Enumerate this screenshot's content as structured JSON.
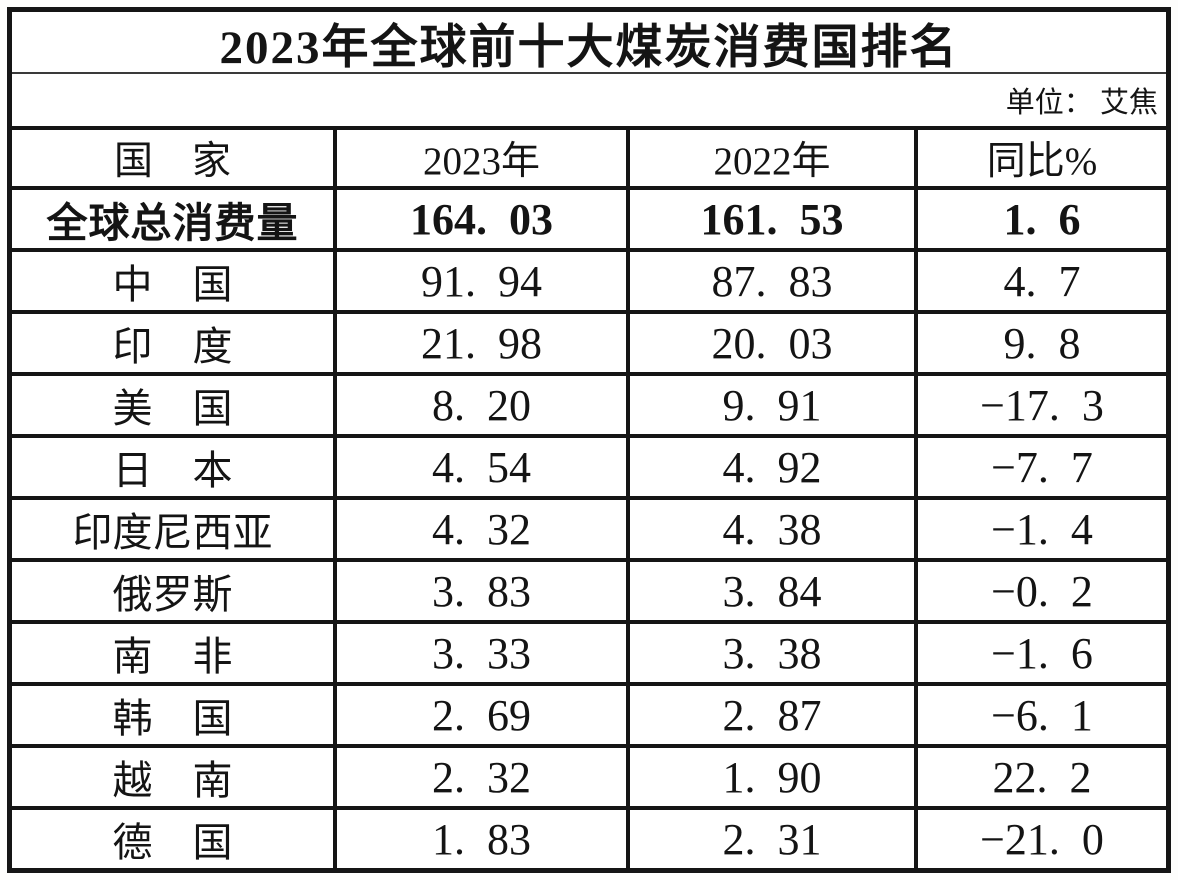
{
  "title": "2023年全球前十大煤炭消费国排名",
  "unit_label": "单位： 艾焦",
  "colors": {
    "background": "#ffffff",
    "border": "#151515",
    "text": "#141414"
  },
  "table": {
    "headers": [
      "国　家",
      "2023年",
      "2022年",
      "同比%"
    ],
    "total_row": {
      "country": "全球总消费量",
      "y2023": "164.03",
      "y2022": "161.53",
      "yoy": "1.6"
    },
    "rows": [
      {
        "country": "中　国",
        "y2023": "91.94",
        "y2022": "87.83",
        "yoy": "4.7"
      },
      {
        "country": "印　度",
        "y2023": "21.98",
        "y2022": "20.03",
        "yoy": "9.8"
      },
      {
        "country": "美　国",
        "y2023": "8.20",
        "y2022": "9.91",
        "yoy": "-17.3"
      },
      {
        "country": "日　本",
        "y2023": "4.54",
        "y2022": "4.92",
        "yoy": "-7.7"
      },
      {
        "country": "印度尼西亚",
        "y2023": "4.32",
        "y2022": "4.38",
        "yoy": "-1.4"
      },
      {
        "country": "俄罗斯",
        "y2023": "3.83",
        "y2022": "3.84",
        "yoy": "-0.2"
      },
      {
        "country": "南　非",
        "y2023": "3.33",
        "y2022": "3.38",
        "yoy": "-1.6"
      },
      {
        "country": "韩　国",
        "y2023": "2.69",
        "y2022": "2.87",
        "yoy": "-6.1"
      },
      {
        "country": "越　南",
        "y2023": "2.32",
        "y2022": "1.90",
        "yoy": "22.2"
      },
      {
        "country": "德　国",
        "y2023": "1.83",
        "y2022": "2.31",
        "yoy": "-21.0"
      }
    ]
  },
  "chart_data": {
    "type": "table",
    "title": "2023年全球前十大煤炭消费国排名",
    "unit": "艾焦",
    "columns": [
      "国家",
      "2023年",
      "2022年",
      "同比%"
    ],
    "rows": [
      [
        "全球总消费量",
        164.03,
        161.53,
        1.6
      ],
      [
        "中国",
        91.94,
        87.83,
        4.7
      ],
      [
        "印度",
        21.98,
        20.03,
        9.8
      ],
      [
        "美国",
        8.2,
        9.91,
        -17.3
      ],
      [
        "日本",
        4.54,
        4.92,
        -7.7
      ],
      [
        "印度尼西亚",
        4.32,
        4.38,
        -1.4
      ],
      [
        "俄罗斯",
        3.83,
        3.84,
        -0.2
      ],
      [
        "南非",
        3.33,
        3.38,
        -1.6
      ],
      [
        "韩国",
        2.69,
        2.87,
        -6.1
      ],
      [
        "越南",
        2.32,
        1.9,
        22.2
      ],
      [
        "德国",
        1.83,
        2.31,
        -21.0
      ]
    ]
  }
}
